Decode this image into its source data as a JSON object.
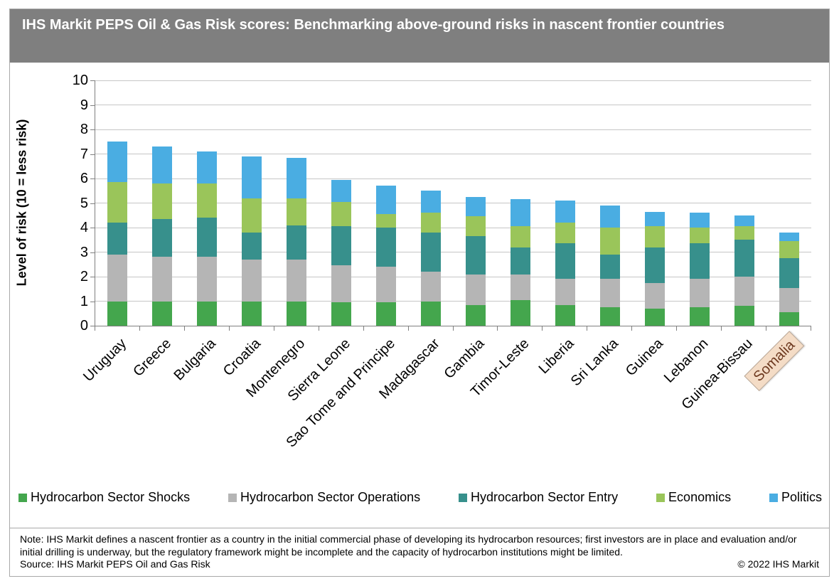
{
  "title": "IHS Markit PEPS Oil & Gas Risk scores: Benchmarking above-ground risks in nascent frontier countries",
  "chart_data": {
    "type": "bar",
    "stacked": true,
    "title": "IHS Markit PEPS Oil & Gas Risk scores: Benchmarking above-ground risks in nascent frontier countries",
    "xlabel": "",
    "ylabel": "Level of risk (10 = less risk)",
    "ylim": [
      0,
      10
    ],
    "y_ticks": [
      0,
      1,
      2,
      3,
      4,
      5,
      6,
      7,
      8,
      9,
      10
    ],
    "grid": "horizontal",
    "legend_position": "bottom",
    "categories": [
      "Uruguay",
      "Greece",
      "Bulgaria",
      "Croatia",
      "Montenegro",
      "Sierra Leone",
      "Sao Tome and Principe",
      "Madagascar",
      "Gambia",
      "Timor-Leste",
      "Liberia",
      "Sri Lanka",
      "Guinea",
      "Lebanon",
      "Guinea-Bissau",
      "Somalia"
    ],
    "highlighted_category": "Somalia",
    "series": [
      {
        "name": "Hydrocarbon Sector Shocks",
        "color": "#44a64d",
        "values": [
          1.0,
          1.0,
          1.0,
          1.0,
          1.0,
          0.95,
          0.95,
          1.0,
          0.85,
          1.05,
          0.85,
          0.75,
          0.7,
          0.75,
          0.8,
          0.55
        ]
      },
      {
        "name": "Hydrocarbon Sector Operations",
        "color": "#b5b5b5",
        "values": [
          1.9,
          1.8,
          1.8,
          1.7,
          1.7,
          1.5,
          1.45,
          1.2,
          1.25,
          1.05,
          1.05,
          1.15,
          1.05,
          1.15,
          1.2,
          1.0
        ]
      },
      {
        "name": "Hydrocarbon Sector Entry",
        "color": "#37908c",
        "values": [
          1.3,
          1.55,
          1.6,
          1.1,
          1.4,
          1.6,
          1.6,
          1.6,
          1.55,
          1.1,
          1.45,
          1.0,
          1.45,
          1.45,
          1.5,
          1.2
        ]
      },
      {
        "name": "Economics",
        "color": "#9ac55a",
        "values": [
          1.65,
          1.45,
          1.4,
          1.4,
          1.1,
          1.0,
          0.55,
          0.8,
          0.8,
          0.85,
          0.85,
          1.1,
          0.85,
          0.65,
          0.55,
          0.7
        ]
      },
      {
        "name": "Politics",
        "color": "#4aade2",
        "values": [
          1.65,
          1.5,
          1.3,
          1.7,
          1.65,
          0.9,
          1.15,
          0.9,
          0.8,
          1.1,
          0.9,
          0.9,
          0.6,
          0.6,
          0.45,
          0.35
        ]
      }
    ],
    "totals": [
      7.5,
      7.3,
      7.1,
      6.9,
      6.85,
      5.95,
      5.7,
      5.5,
      5.25,
      5.15,
      5.1,
      4.9,
      4.65,
      4.6,
      4.5,
      3.8
    ]
  },
  "colors": {
    "title_bar_bg": "#7f7f7f",
    "title_text": "#ffffff",
    "gridline": "#c6c6c6",
    "axis": "#7f7f7f",
    "figure_border": "#a9a9a9",
    "highlight_bg": "#f4dcc6",
    "highlight_border": "#b9a898",
    "highlight_text": "#6e3a20"
  },
  "footer": {
    "note": "Note: IHS Markit defines a nascent frontier as a country in the initial commercial phase of developing its hydrocarbon resources; first investors are in place and evaluation and/or initial drilling is underway, but the regulatory framework might be incomplete and the capacity of hydrocarbon institutions might be limited.",
    "source": "Source: IHS Markit PEPS Oil and Gas Risk",
    "copyright": "© 2022 IHS Markit"
  }
}
